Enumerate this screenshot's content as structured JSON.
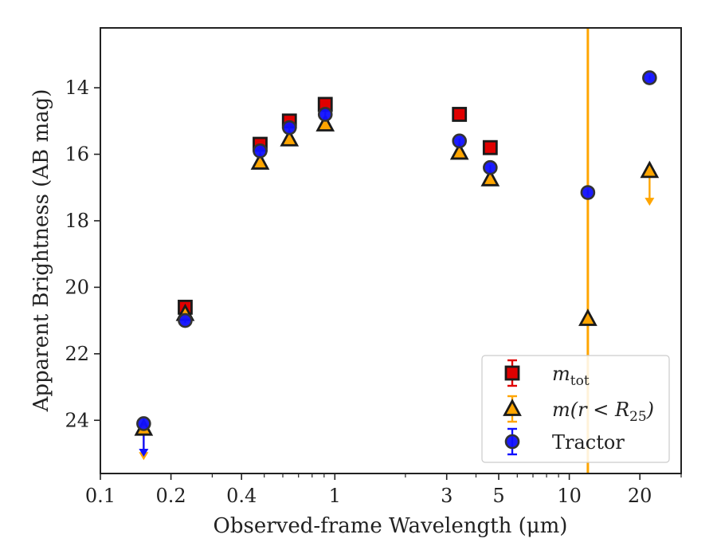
{
  "chart_data": {
    "type": "scatter",
    "title": "",
    "xlabel": "Observed-frame Wavelength (μm)",
    "ylabel": "Apparent Brightness (AB mag)",
    "xscale": "log",
    "xlim": [
      0.1,
      30
    ],
    "ylim": [
      25.6,
      12.2
    ],
    "y_inverted": true,
    "grid": false,
    "legend_position": "lower-right",
    "x_ticks": [
      {
        "value": 0.1,
        "label": "0.1"
      },
      {
        "value": 0.2,
        "label": "0.2"
      },
      {
        "value": 0.4,
        "label": "0.4"
      },
      {
        "value": 1,
        "label": "1"
      },
      {
        "value": 3,
        "label": "3"
      },
      {
        "value": 5,
        "label": "5"
      },
      {
        "value": 10,
        "label": "10"
      },
      {
        "value": 20,
        "label": "20"
      }
    ],
    "y_ticks": [
      {
        "value": 14,
        "label": "14"
      },
      {
        "value": 16,
        "label": "16"
      },
      {
        "value": 18,
        "label": "18"
      },
      {
        "value": 20,
        "label": "20"
      },
      {
        "value": 22,
        "label": "22"
      },
      {
        "value": 24,
        "label": "24"
      }
    ],
    "series": [
      {
        "name": "m_tot",
        "legend_label_main": "m",
        "legend_label_sub": "tot",
        "marker": "square",
        "color": "#e00000",
        "edge_color": "#1a1a1a",
        "points": [
          {
            "x": 0.23,
            "y": 20.6
          },
          {
            "x": 0.48,
            "y": 15.7
          },
          {
            "x": 0.64,
            "y": 15.0
          },
          {
            "x": 0.91,
            "y": 14.5
          },
          {
            "x": 3.4,
            "y": 14.8
          },
          {
            "x": 4.6,
            "y": 15.8
          }
        ]
      },
      {
        "name": "m(r < R25)",
        "legend_label_main": "m(r < R",
        "legend_label_sub": "25",
        "legend_label_tail": ")",
        "marker": "triangle",
        "color": "#ffa500",
        "edge_color": "#1a1a1a",
        "points": [
          {
            "x": 0.153,
            "y": 24.25,
            "upper_limit": true,
            "arrow_to": 25.15
          },
          {
            "x": 0.23,
            "y": 20.8
          },
          {
            "x": 0.48,
            "y": 16.25
          },
          {
            "x": 0.64,
            "y": 15.55
          },
          {
            "x": 0.91,
            "y": 15.1
          },
          {
            "x": 3.4,
            "y": 15.95
          },
          {
            "x": 4.6,
            "y": 16.75
          },
          {
            "x": 12.0,
            "y": 20.95
          },
          {
            "x": 22.0,
            "y": 16.5,
            "upper_limit": true,
            "arrow_to": 17.5
          }
        ]
      },
      {
        "name": "Tractor",
        "legend_label_main": "Tractor",
        "marker": "circle",
        "color": "#1010ff",
        "edge_color": "#333333",
        "points": [
          {
            "x": 0.153,
            "y": 24.1,
            "upper_limit": true,
            "arrow_to": 25.05
          },
          {
            "x": 0.23,
            "y": 21.0
          },
          {
            "x": 0.48,
            "y": 15.9
          },
          {
            "x": 0.64,
            "y": 15.2
          },
          {
            "x": 0.91,
            "y": 14.8
          },
          {
            "x": 3.4,
            "y": 15.6
          },
          {
            "x": 4.6,
            "y": 16.4
          },
          {
            "x": 12.0,
            "y": 17.15
          },
          {
            "x": 22.0,
            "y": 13.7
          }
        ]
      }
    ],
    "vertical_error_band": {
      "x": 12.0,
      "color": "#ffa500"
    }
  }
}
